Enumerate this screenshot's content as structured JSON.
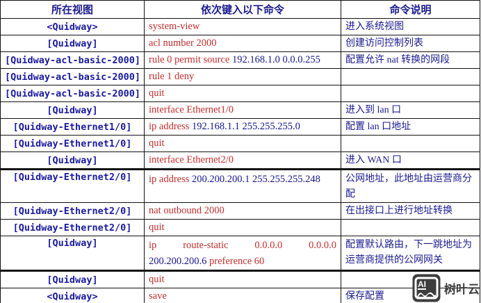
{
  "header": {
    "view_col": "所在视图",
    "command_col": "依次键入以下命令",
    "description_col": "命令说明"
  },
  "rows": [
    {
      "view": "<Quidway>",
      "cmd_lines": [
        {
          "justify": false,
          "segs": [
            {
              "t": "system-view",
              "c": "k"
            }
          ]
        }
      ],
      "desc": "进入系统视图",
      "tall": false,
      "thick_top": false
    },
    {
      "view": "[Quidway]",
      "cmd_lines": [
        {
          "justify": false,
          "segs": [
            {
              "t": "acl number 2000",
              "c": "k"
            }
          ]
        }
      ],
      "desc": "创建访问控制列表",
      "tall": false,
      "thick_top": false
    },
    {
      "view": "[Quidway-acl-basic-2000]",
      "cmd_lines": [
        {
          "justify": false,
          "segs": [
            {
              "t": "rule 0 permit source ",
              "c": "k"
            },
            {
              "t": "192.168.1.0 0.0.0.255",
              "c": "v"
            }
          ]
        }
      ],
      "desc": "配置允许 nat 转换的网段",
      "tall": false,
      "thick_top": false
    },
    {
      "view": "[Quidway-acl-basic-2000]",
      "cmd_lines": [
        {
          "justify": false,
          "segs": [
            {
              "t": "rule 1 deny",
              "c": "k"
            }
          ]
        }
      ],
      "desc": "",
      "tall": false,
      "thick_top": false
    },
    {
      "view": "[Quidway-acl-basic-2000]",
      "cmd_lines": [
        {
          "justify": false,
          "segs": [
            {
              "t": "quit",
              "c": "k"
            }
          ]
        }
      ],
      "desc": "",
      "tall": false,
      "thick_top": false
    },
    {
      "view": "[Quidway]",
      "cmd_lines": [
        {
          "justify": false,
          "segs": [
            {
              "t": "interface Ethernet1/0",
              "c": "k"
            }
          ]
        }
      ],
      "desc": "进入到 lan 口",
      "tall": false,
      "thick_top": false
    },
    {
      "view": "[Quidway-Ethernet1/0]",
      "cmd_lines": [
        {
          "justify": false,
          "segs": [
            {
              "t": "ip address ",
              "c": "k"
            },
            {
              "t": "192.168.1.1 255.255.255.0",
              "c": "v"
            }
          ]
        }
      ],
      "desc": "配置 lan 口地址",
      "tall": false,
      "thick_top": false
    },
    {
      "view": "[Quidway-Ethernet1/0]",
      "cmd_lines": [
        {
          "justify": false,
          "segs": [
            {
              "t": "quit",
              "c": "k"
            }
          ]
        }
      ],
      "desc": "",
      "tall": false,
      "thick_top": false
    },
    {
      "view": "[Quidway]",
      "cmd_lines": [
        {
          "justify": false,
          "segs": [
            {
              "t": "interface Ethernet2/0",
              "c": "k"
            }
          ]
        }
      ],
      "desc": "进入 WAN 口",
      "tall": false,
      "thick_top": false
    },
    {
      "view": "[Quidway-Ethernet2/0]",
      "cmd_lines": [
        {
          "justify": false,
          "segs": [
            {
              "t": "ip address ",
              "c": "k"
            },
            {
              "t": "200.200.200.1 255.255.255.248",
              "c": "v"
            }
          ]
        }
      ],
      "desc": "公网地址，此地址由运营商分配",
      "tall": true,
      "thick_top": true
    },
    {
      "view": "[Quidway-Ethernet2/0]",
      "cmd_lines": [
        {
          "justify": false,
          "segs": [
            {
              "t": "nat outbound 2000",
              "c": "k"
            }
          ]
        }
      ],
      "desc": "在出接口上进行地址转换",
      "tall": false,
      "thick_top": false
    },
    {
      "view": "[Quidway-Ethernet2/0]",
      "cmd_lines": [
        {
          "justify": false,
          "segs": [
            {
              "t": "quit",
              "c": "k"
            }
          ]
        }
      ],
      "desc": "",
      "tall": false,
      "thick_top": false
    },
    {
      "view": "[Quidway]",
      "cmd_lines": [
        {
          "justify": true,
          "segs": [
            {
              "t": "ip",
              "c": "k"
            },
            {
              "t": "route-static",
              "c": "k"
            },
            {
              "t": "0.0.0.0",
              "c": "k"
            },
            {
              "t": "0.0.0.0",
              "c": "k"
            }
          ]
        },
        {
          "justify": false,
          "segs": [
            {
              "t": "200.200.200.6 ",
              "c": "v"
            },
            {
              "t": "preference 60",
              "c": "k"
            }
          ]
        }
      ],
      "desc": "配置默认路由，下一跳地址为运营商提供的公网网关",
      "tall": true,
      "thick_top": false
    },
    {
      "view": "[Quidway]",
      "cmd_lines": [
        {
          "justify": false,
          "segs": [
            {
              "t": "quit",
              "c": "k"
            }
          ]
        }
      ],
      "desc": "",
      "tall": false,
      "thick_top": true
    },
    {
      "view": "<Quidway>",
      "cmd_lines": [
        {
          "justify": false,
          "segs": [
            {
              "t": "save",
              "c": "k"
            }
          ]
        }
      ],
      "desc": "保存配置",
      "tall": false,
      "thick_top": false
    }
  ],
  "watermark": {
    "logo_text": "AI",
    "brand": "树叶云"
  },
  "colors": {
    "keyword_red": "#c22e2e",
    "value_navy": "#16168e",
    "view_navy": "#1a1a9e",
    "desc_navy": "#1b1b8f",
    "border": "#111111",
    "watermark_gray": "#3d3d3d"
  }
}
